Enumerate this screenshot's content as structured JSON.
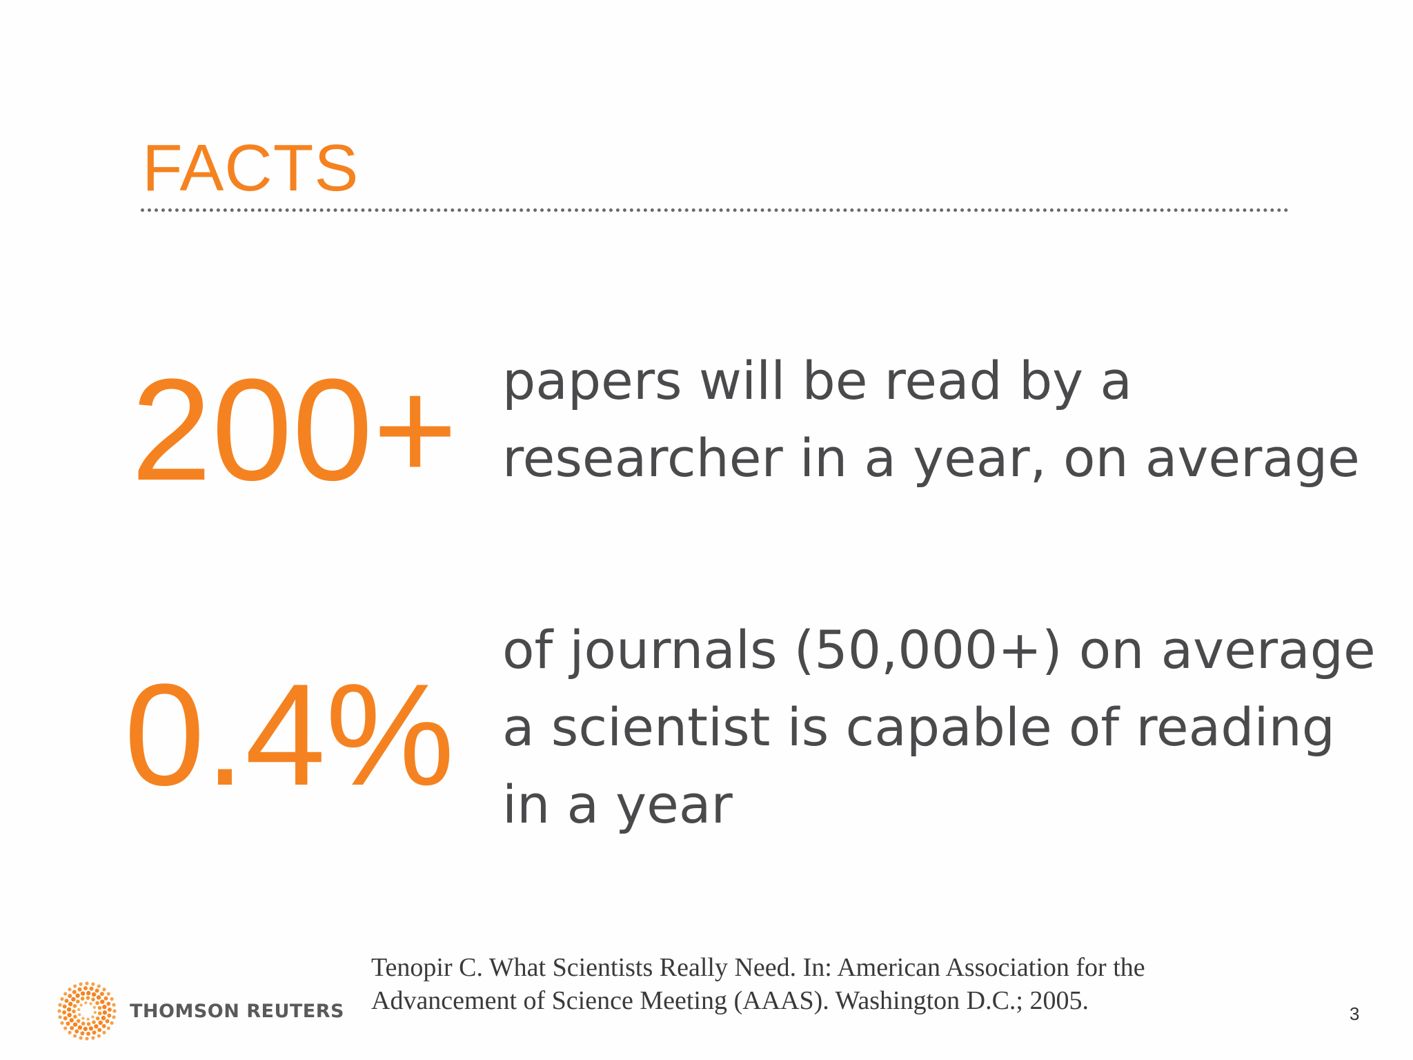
{
  "slide": {
    "title": "FACTS",
    "facts": [
      {
        "value": "200+",
        "lines": [
          "papers will be read by a",
          "researcher in a year, on average"
        ]
      },
      {
        "value": "0.4%",
        "lines": [
          "of journals (50,000+) on average",
          "a scientist is capable of reading",
          "in a year"
        ]
      }
    ],
    "citation": {
      "lines": [
        "Tenopir C. What Scientists Really Need. In: American Association for the",
        "Advancement of Science Meeting (AAAS). Washington D.C.; 2005."
      ]
    },
    "logo": {
      "text": "THOMSON REUTERS",
      "icon": "thomson-reuters-dotted-ring-icon"
    },
    "page_number": "3",
    "colors": {
      "accent": "#f58220",
      "body_text": "#4a4a4d",
      "rule": "#6a6a6a"
    }
  }
}
